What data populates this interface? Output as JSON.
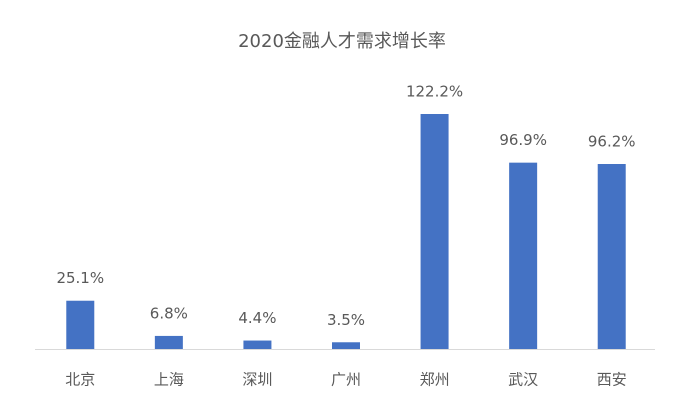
{
  "chart_data": {
    "type": "bar",
    "title": "2020金融人才需求增长率",
    "categories": [
      "北京",
      "上海",
      "深圳",
      "广州",
      "郑州",
      "武汉",
      "西安"
    ],
    "values": [
      25.1,
      6.8,
      4.4,
      3.5,
      122.2,
      96.9,
      96.2
    ],
    "value_labels": [
      "25.1%",
      "6.8%",
      "4.4%",
      "3.5%",
      "122.2%",
      "96.9%",
      "96.2%"
    ],
    "color": "#4472c4"
  }
}
